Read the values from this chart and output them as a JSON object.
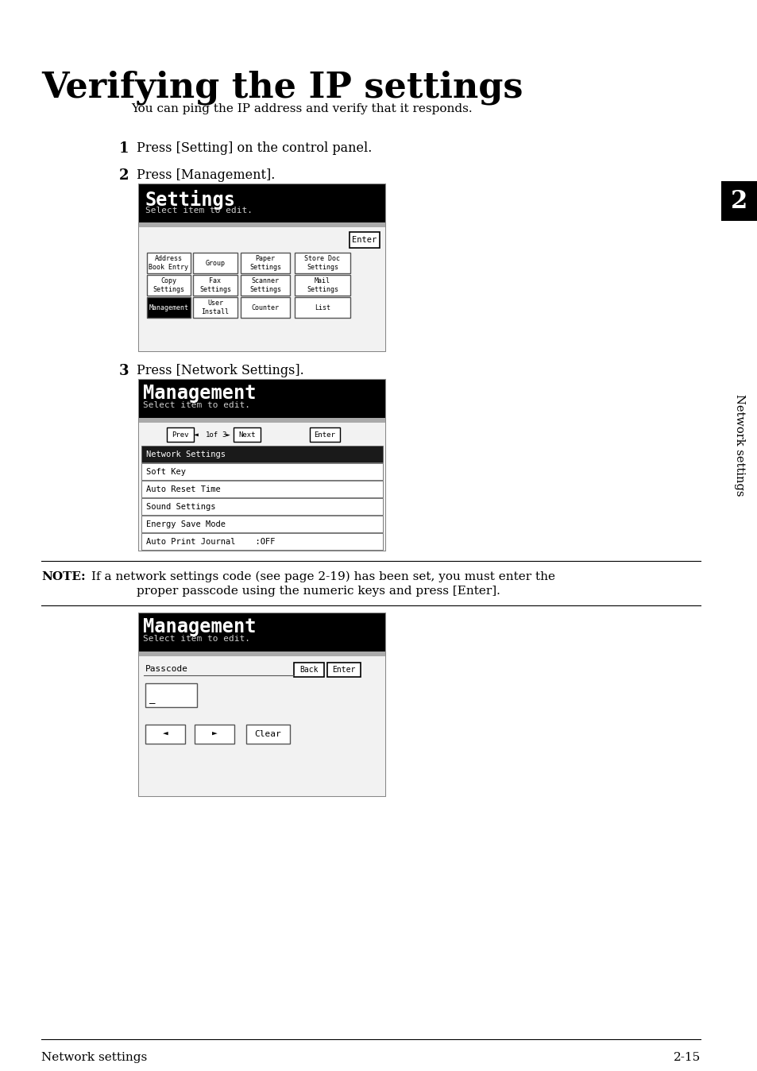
{
  "title": "Verifying the IP settings",
  "subtitle": "You can ping the IP address and verify that it responds.",
  "step1": "Press [Setting] on the control panel.",
  "step2": "Press [Management].",
  "step3": "Press [Network Settings].",
  "note_bold": "NOTE:",
  "note_text1": "If a network settings code (see page 2-19) has been set, you must enter the",
  "note_text2": "proper passcode using the numeric keys and press [Enter].",
  "footer_left": "Network settings",
  "footer_right": "2-15",
  "sidebar_text": "Network settings",
  "bg_color": "#ffffff"
}
